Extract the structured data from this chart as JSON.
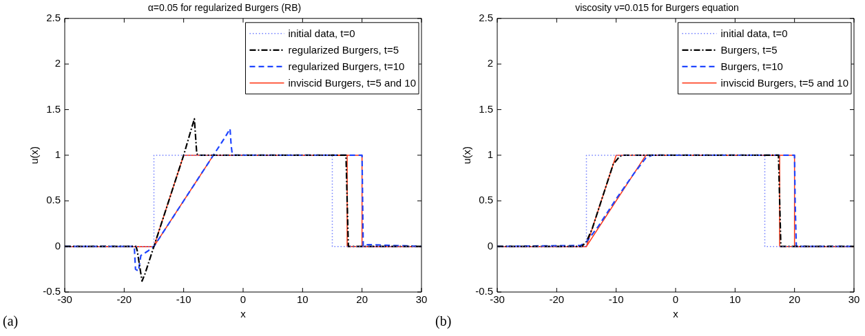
{
  "chart_data": [
    {
      "type": "line",
      "title": "α=0.05 for regularized Burgers (RB)",
      "xlabel": "x",
      "ylabel": "u(x)",
      "annotations": [
        "(a)"
      ],
      "xlim": [
        -30,
        30
      ],
      "ylim": [
        -0.5,
        2.5
      ],
      "xticks": [
        -30,
        -20,
        -10,
        0,
        10,
        20,
        30
      ],
      "yticks": [
        -0.5,
        0,
        0.5,
        1,
        1.5,
        2,
        2.5
      ],
      "grid": false,
      "legend": "top right",
      "marker": "none",
      "series": [
        {
          "name": "initial data, t=0",
          "color": "#6f7dff",
          "line_style": "dotted",
          "x": [
            -30,
            -15,
            -15,
            15,
            15,
            30
          ],
          "values": [
            0,
            0,
            1,
            1,
            0,
            0
          ]
        },
        {
          "name": "regularized Burgers, t=5",
          "color": "#000000",
          "line_style": "dashdot",
          "x": [
            -30,
            -18,
            -17.8,
            -17,
            -16.5,
            -15,
            -12,
            -10,
            -8.2,
            -7.8,
            -7.6,
            17.3,
            17.5,
            17.7,
            30
          ],
          "values": [
            0,
            0,
            -0.05,
            -0.38,
            -0.3,
            0,
            0.6,
            1,
            1.4,
            1.02,
            1,
            1,
            0.5,
            0,
            0
          ]
        },
        {
          "name": "regularized Burgers, t=10",
          "color": "#1f45ff",
          "line_style": "dashed",
          "x": [
            -30,
            -18.3,
            -18.1,
            -17.6,
            -17.2,
            -16,
            -15,
            -10,
            -5,
            -3,
            -2.2,
            -2,
            -1.8,
            20,
            20.2,
            21,
            30
          ],
          "values": [
            0,
            0,
            -0.25,
            -0.27,
            -0.1,
            -0.05,
            0,
            0.5,
            1,
            1.2,
            1.29,
            1.1,
            1,
            1,
            0,
            0.02,
            0
          ]
        },
        {
          "name": "inviscid Burgers, t=5 and 10",
          "color": "#ff3311",
          "line_style": "solid",
          "x": [
            -30,
            -15,
            -10,
            17.5,
            17.5,
            30
          ],
          "values": [
            0,
            0,
            1,
            1,
            0,
            0
          ]
        },
        {
          "color": "#ff3311",
          "line_style": "solid",
          "x": [
            -30,
            -15,
            -5,
            20,
            20,
            30
          ],
          "values": [
            0,
            0,
            1,
            1,
            0,
            0
          ]
        }
      ]
    },
    {
      "type": "line",
      "title": "viscosity ν=0.015 for Burgers equation",
      "xlabel": "x",
      "ylabel": "u(x)",
      "annotations": [
        "(b)"
      ],
      "xlim": [
        -30,
        30
      ],
      "ylim": [
        -0.5,
        2.5
      ],
      "xticks": [
        -30,
        -20,
        -10,
        0,
        10,
        20,
        30
      ],
      "yticks": [
        -0.5,
        0,
        0.5,
        1,
        1.5,
        2,
        2.5
      ],
      "grid": false,
      "legend": "top right",
      "marker": "none",
      "series": [
        {
          "name": "initial data, t=0",
          "color": "#6f7dff",
          "line_style": "dotted",
          "x": [
            -30,
            -15,
            -15,
            15,
            15,
            30
          ],
          "values": [
            0,
            0,
            1,
            1,
            0,
            0
          ]
        },
        {
          "name": "Burgers, t=5",
          "color": "#000000",
          "line_style": "dashdot",
          "x": [
            -30,
            -15.8,
            -15,
            -14,
            -12,
            -10.5,
            -9.5,
            -9,
            17.3,
            17.5,
            17.7,
            30
          ],
          "values": [
            0,
            0,
            0.05,
            0.2,
            0.6,
            0.9,
            0.98,
            1,
            1,
            0.5,
            0,
            0
          ]
        },
        {
          "name": "Burgers, t=10",
          "color": "#1f45ff",
          "line_style": "dashed",
          "x": [
            -30,
            -16,
            -15,
            -13,
            -10,
            -7,
            -5,
            -4,
            20,
            20.1,
            20.3,
            30
          ],
          "values": [
            0,
            0.01,
            0.05,
            0.22,
            0.52,
            0.8,
            0.97,
            1,
            1,
            0.5,
            0,
            0
          ]
        },
        {
          "name": "inviscid Burgers, t=5 and 10",
          "color": "#ff3311",
          "line_style": "solid",
          "x": [
            -30,
            -15,
            -10,
            17.5,
            17.5,
            30
          ],
          "values": [
            0,
            0,
            1,
            1,
            0,
            0
          ]
        },
        {
          "color": "#ff3311",
          "line_style": "solid",
          "x": [
            -30,
            -15,
            -5,
            20,
            20,
            30
          ],
          "values": [
            0,
            0,
            1,
            1,
            0,
            0
          ]
        }
      ]
    }
  ]
}
